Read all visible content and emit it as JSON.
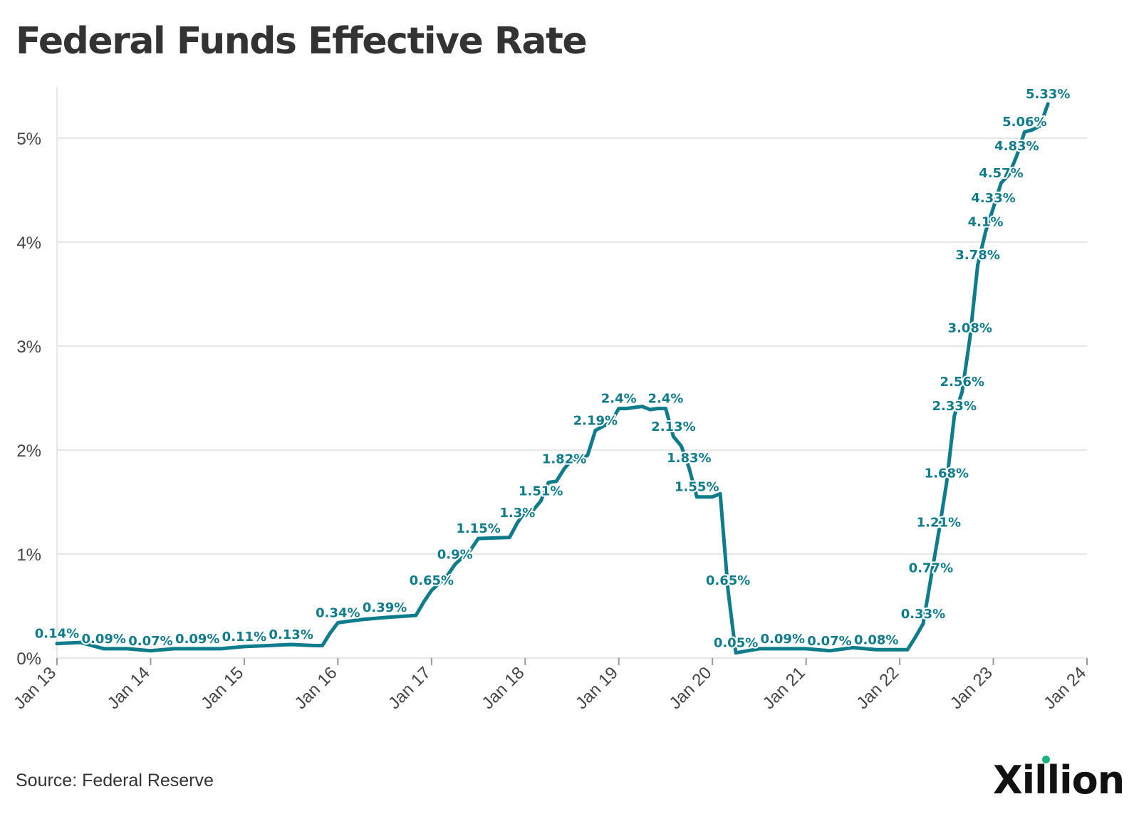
{
  "title": "Federal Funds Effective Rate",
  "source": "Source: Federal Reserve",
  "logo": {
    "text": "Xillion",
    "dot_color": "#19b57a"
  },
  "colors": {
    "line": "#0f7c8c",
    "label": "#0f7c8c",
    "grid": "#e6e6e6",
    "axis_text": "#444444"
  },
  "chart_data": {
    "type": "line",
    "title": "Federal Funds Effective Rate",
    "xlabel": "",
    "ylabel": "",
    "x_range": [
      "2013-01",
      "2024-01"
    ],
    "ylim": [
      0,
      5.5
    ],
    "y_ticks": [
      0,
      1,
      2,
      3,
      4,
      5
    ],
    "y_tick_labels": [
      "0%",
      "1%",
      "2%",
      "3%",
      "4%",
      "5%"
    ],
    "x_ticks": [
      "2013-01",
      "2014-01",
      "2015-01",
      "2016-01",
      "2017-01",
      "2018-01",
      "2019-01",
      "2020-01",
      "2021-01",
      "2022-01",
      "2023-01",
      "2024-01"
    ],
    "x_tick_labels": [
      "Jan 13",
      "Jan 14",
      "Jan 15",
      "Jan 16",
      "Jan 17",
      "Jan 18",
      "Jan 19",
      "Jan 20",
      "Jan 21",
      "Jan 22",
      "Jan 23",
      "Jan 24"
    ],
    "grid": true,
    "series": [
      {
        "points": [
          [
            "2013-01",
            0.14
          ],
          [
            "2013-04",
            0.15
          ],
          [
            "2013-07",
            0.09
          ],
          [
            "2013-10",
            0.09
          ],
          [
            "2014-01",
            0.07
          ],
          [
            "2014-04",
            0.09
          ],
          [
            "2014-07",
            0.09
          ],
          [
            "2014-10",
            0.09
          ],
          [
            "2015-01",
            0.11
          ],
          [
            "2015-04",
            0.12
          ],
          [
            "2015-07",
            0.13
          ],
          [
            "2015-10",
            0.12
          ],
          [
            "2015-11",
            0.12
          ],
          [
            "2015-12",
            0.24
          ],
          [
            "2016-01",
            0.34
          ],
          [
            "2016-04",
            0.37
          ],
          [
            "2016-07",
            0.39
          ],
          [
            "2016-11",
            0.41
          ],
          [
            "2016-12",
            0.54
          ],
          [
            "2017-01",
            0.65
          ],
          [
            "2017-03",
            0.79
          ],
          [
            "2017-04",
            0.9
          ],
          [
            "2017-06",
            1.04
          ],
          [
            "2017-07",
            1.15
          ],
          [
            "2017-11",
            1.16
          ],
          [
            "2017-12",
            1.3
          ],
          [
            "2018-01",
            1.41
          ],
          [
            "2018-02",
            1.42
          ],
          [
            "2018-03",
            1.51
          ],
          [
            "2018-04",
            1.69
          ],
          [
            "2018-05",
            1.7
          ],
          [
            "2018-06",
            1.82
          ],
          [
            "2018-07",
            1.91
          ],
          [
            "2018-08",
            1.91
          ],
          [
            "2018-09",
            1.95
          ],
          [
            "2018-10",
            2.19
          ],
          [
            "2018-12",
            2.27
          ],
          [
            "2019-01",
            2.4
          ],
          [
            "2019-02",
            2.4
          ],
          [
            "2019-03",
            2.41
          ],
          [
            "2019-04",
            2.42
          ],
          [
            "2019-05",
            2.39
          ],
          [
            "2019-06",
            2.4
          ],
          [
            "2019-07",
            2.4
          ],
          [
            "2019-08",
            2.13
          ],
          [
            "2019-09",
            2.04
          ],
          [
            "2019-10",
            1.83
          ],
          [
            "2019-11",
            1.55
          ],
          [
            "2019-12",
            1.55
          ],
          [
            "2020-01",
            1.55
          ],
          [
            "2020-02",
            1.58
          ],
          [
            "2020-03",
            0.65
          ],
          [
            "2020-04",
            0.05
          ],
          [
            "2020-07",
            0.09
          ],
          [
            "2020-10",
            0.09
          ],
          [
            "2021-01",
            0.09
          ],
          [
            "2021-04",
            0.07
          ],
          [
            "2021-07",
            0.1
          ],
          [
            "2021-10",
            0.08
          ],
          [
            "2022-01",
            0.08
          ],
          [
            "2022-02",
            0.08
          ],
          [
            "2022-03",
            0.2
          ],
          [
            "2022-04",
            0.33
          ],
          [
            "2022-05",
            0.77
          ],
          [
            "2022-06",
            1.21
          ],
          [
            "2022-07",
            1.68
          ],
          [
            "2022-08",
            2.33
          ],
          [
            "2022-09",
            2.56
          ],
          [
            "2022-10",
            3.08
          ],
          [
            "2022-11",
            3.78
          ],
          [
            "2022-12",
            4.1
          ],
          [
            "2023-01",
            4.33
          ],
          [
            "2023-02",
            4.57
          ],
          [
            "2023-03",
            4.65
          ],
          [
            "2023-04",
            4.83
          ],
          [
            "2023-05",
            5.06
          ],
          [
            "2023-06",
            5.08
          ],
          [
            "2023-07",
            5.12
          ],
          [
            "2023-08",
            5.33
          ]
        ]
      }
    ],
    "data_labels": [
      {
        "x": "2013-01",
        "y": 0.14,
        "text": "0.14%"
      },
      {
        "x": "2013-07",
        "y": 0.09,
        "text": "0.09%"
      },
      {
        "x": "2014-01",
        "y": 0.07,
        "text": "0.07%"
      },
      {
        "x": "2014-07",
        "y": 0.09,
        "text": "0.09%"
      },
      {
        "x": "2015-01",
        "y": 0.11,
        "text": "0.11%"
      },
      {
        "x": "2015-07",
        "y": 0.13,
        "text": "0.13%"
      },
      {
        "x": "2016-01",
        "y": 0.34,
        "text": "0.34%"
      },
      {
        "x": "2016-07",
        "y": 0.39,
        "text": "0.39%"
      },
      {
        "x": "2017-01",
        "y": 0.65,
        "text": "0.65%"
      },
      {
        "x": "2017-04",
        "y": 0.9,
        "text": "0.9%"
      },
      {
        "x": "2017-07",
        "y": 1.15,
        "text": "1.15%"
      },
      {
        "x": "2017-12",
        "y": 1.3,
        "text": "1.3%"
      },
      {
        "x": "2018-03",
        "y": 1.51,
        "text": "1.51%"
      },
      {
        "x": "2018-06",
        "y": 1.82,
        "text": "1.82%"
      },
      {
        "x": "2018-10",
        "y": 2.19,
        "text": "2.19%"
      },
      {
        "x": "2019-01",
        "y": 2.4,
        "text": "2.4%"
      },
      {
        "x": "2019-07",
        "y": 2.4,
        "text": "2.4%"
      },
      {
        "x": "2019-08",
        "y": 2.13,
        "text": "2.13%"
      },
      {
        "x": "2019-10",
        "y": 1.83,
        "text": "1.83%"
      },
      {
        "x": "2019-11",
        "y": 1.55,
        "text": "1.55%"
      },
      {
        "x": "2020-03",
        "y": 0.65,
        "text": "0.65%"
      },
      {
        "x": "2020-04",
        "y": 0.05,
        "text": "0.05%"
      },
      {
        "x": "2020-10",
        "y": 0.09,
        "text": "0.09%"
      },
      {
        "x": "2021-04",
        "y": 0.07,
        "text": "0.07%"
      },
      {
        "x": "2021-10",
        "y": 0.08,
        "text": "0.08%"
      },
      {
        "x": "2022-04",
        "y": 0.33,
        "text": "0.33%"
      },
      {
        "x": "2022-05",
        "y": 0.77,
        "text": "0.77%"
      },
      {
        "x": "2022-06",
        "y": 1.21,
        "text": "1.21%"
      },
      {
        "x": "2022-07",
        "y": 1.68,
        "text": "1.68%"
      },
      {
        "x": "2022-08",
        "y": 2.33,
        "text": "2.33%"
      },
      {
        "x": "2022-09",
        "y": 2.56,
        "text": "2.56%"
      },
      {
        "x": "2022-10",
        "y": 3.08,
        "text": "3.08%"
      },
      {
        "x": "2022-11",
        "y": 3.78,
        "text": "3.78%"
      },
      {
        "x": "2022-12",
        "y": 4.1,
        "text": "4.1%"
      },
      {
        "x": "2023-01",
        "y": 4.33,
        "text": "4.33%"
      },
      {
        "x": "2023-02",
        "y": 4.57,
        "text": "4.57%"
      },
      {
        "x": "2023-04",
        "y": 4.83,
        "text": "4.83%"
      },
      {
        "x": "2023-05",
        "y": 5.06,
        "text": "5.06%"
      },
      {
        "x": "2023-08",
        "y": 5.33,
        "text": "5.33%"
      }
    ]
  }
}
